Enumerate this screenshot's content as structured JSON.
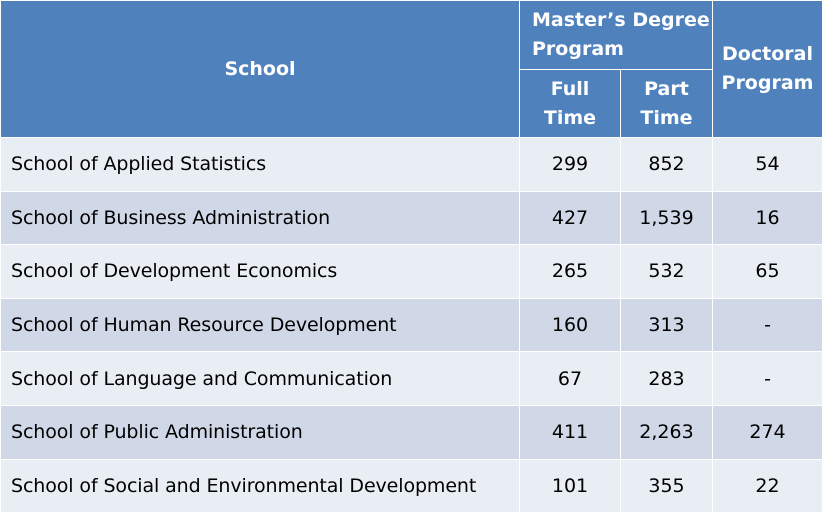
{
  "headers": {
    "school": "School",
    "masters_line1": "Master’s Degree",
    "masters_line2": "Program",
    "full_line1": "Full",
    "full_line2": "Time",
    "part_line1": "Part",
    "part_line2": "Time",
    "doctoral_line1": "Doctoral",
    "doctoral_line2": "Program"
  },
  "rows": [
    {
      "school": "School of Applied Statistics",
      "full_time": "299",
      "part_time": "852",
      "doctoral": "54"
    },
    {
      "school": "School of Business Administration",
      "full_time": "427",
      "part_time": "1,539",
      "doctoral": "16"
    },
    {
      "school": "School of Development Economics",
      "full_time": "265",
      "part_time": "532",
      "doctoral": "65"
    },
    {
      "school": "School of Human Resource Development",
      "full_time": "160",
      "part_time": "313",
      "doctoral": "-"
    },
    {
      "school": "School of Language and Communication",
      "full_time": "67",
      "part_time": "283",
      "doctoral": "-"
    },
    {
      "school": "School of Public Administration",
      "full_time": "411",
      "part_time": "2,263",
      "doctoral": "274"
    },
    {
      "school": "School of Social and Environmental Development",
      "full_time": "101",
      "part_time": "355",
      "doctoral": "22"
    }
  ],
  "colors": {
    "header_bg": "#4f81bd",
    "row_light": "#e9edf4",
    "row_dark": "#d0d8e8"
  }
}
